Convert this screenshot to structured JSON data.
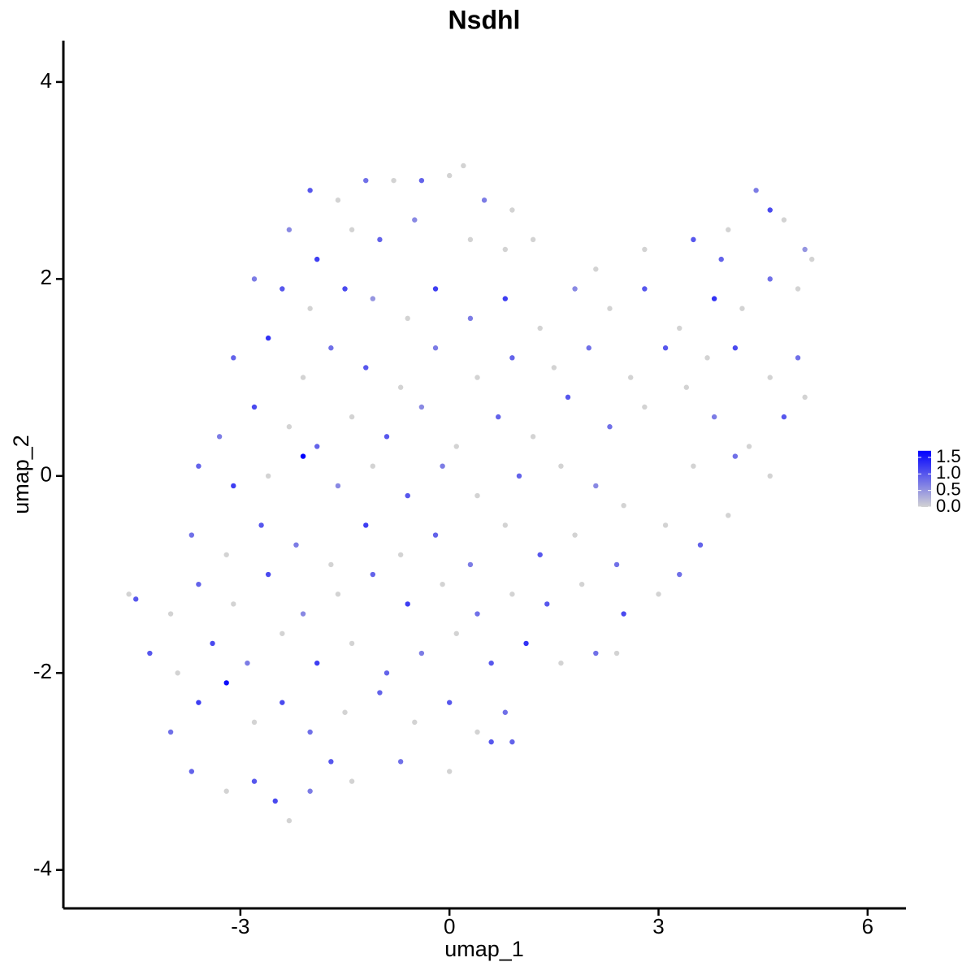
{
  "chart_data": {
    "type": "scatter",
    "title": "Nsdhl",
    "x_label": "umap_1",
    "y_label": "umap_2",
    "xlim": [
      -5.54,
      6.55
    ],
    "xticks": [
      -3,
      0,
      3,
      6
    ],
    "ylim": [
      -4.39,
      4.42
    ],
    "yticks": [
      -4,
      -2,
      0,
      2,
      4
    ],
    "low_color": "#d3d3d3",
    "high_color": "#0000ff",
    "colorbar": {
      "lim": [
        0,
        1.7
      ],
      "ticks": [
        {
          "value": 0,
          "label": "0.0"
        },
        {
          "value": 0.5,
          "label": "0.5"
        },
        {
          "value": 1,
          "label": "1.0"
        },
        {
          "value": 1.5,
          "label": "1.5"
        }
      ]
    },
    "x": [
      -2.3,
      -2.0,
      -1.6,
      -1.2,
      -0.8,
      -0.4,
      0,
      0.2,
      0.5,
      0.9,
      -1.9,
      -1.4,
      -1.0,
      -0.5,
      0.3,
      0.8,
      1.2,
      -2.8,
      -2.4,
      -2.0,
      -1.5,
      -1.1,
      -0.6,
      -0.2,
      0.3,
      0.8,
      1.3,
      1.8,
      2.3,
      2.8,
      3.3,
      3.8,
      4.2,
      4.6,
      5.0,
      5.2,
      3.5,
      4.0,
      4.4,
      4.8,
      5.1,
      2.8,
      3.9,
      4.6,
      2.1,
      -3.1,
      -2.6,
      -2.1,
      -1.7,
      -1.2,
      -0.7,
      -0.2,
      0.4,
      0.9,
      1.5,
      2.0,
      2.6,
      3.1,
      3.7,
      4.1,
      4.6,
      5.0,
      1.7,
      -3.3,
      -2.8,
      -2.3,
      -1.9,
      -1.4,
      -0.9,
      -0.4,
      0.1,
      0.7,
      1.2,
      2.3,
      2.8,
      3.8,
      4.3,
      4.8,
      5.1,
      3.4,
      -3.6,
      -3.1,
      -2.6,
      -2.1,
      -1.6,
      -1.1,
      -0.6,
      -0.1,
      0.4,
      1.0,
      1.6,
      2.1,
      3.5,
      4.1,
      4.6,
      2.5,
      -3.7,
      -3.2,
      -2.7,
      -2.2,
      -1.7,
      -1.2,
      -0.7,
      -0.2,
      0.3,
      0.8,
      1.3,
      1.8,
      2.4,
      3.1,
      3.6,
      4.0,
      -4.6,
      -4.5,
      -4.0,
      -3.6,
      -3.1,
      -2.6,
      -2.1,
      -1.6,
      -1.1,
      -0.6,
      -0.1,
      0.4,
      0.9,
      1.4,
      1.9,
      2.5,
      3.0,
      3.3,
      -4.3,
      -3.9,
      -3.4,
      -2.9,
      -2.4,
      -1.9,
      -1.4,
      -0.9,
      -0.4,
      0.1,
      0.6,
      1.1,
      1.6,
      2.1,
      2.4,
      -4.0,
      -3.6,
      -3.2,
      -2.8,
      -2.4,
      -2.0,
      -1.5,
      -1.0,
      -0.5,
      0.0,
      0.4,
      0.8,
      0.6,
      -3.7,
      -3.2,
      -2.8,
      -2.5,
      -2.3,
      -2.0,
      -1.4,
      -0.7,
      0.0,
      -1.7,
      0.9
    ],
    "y": [
      2.5,
      2.9,
      2.8,
      3.0,
      3.0,
      3.0,
      3.05,
      3.15,
      2.8,
      2.7,
      2.2,
      2.5,
      2.4,
      2.6,
      2.4,
      2.3,
      2.4,
      2.0,
      1.9,
      1.7,
      1.9,
      1.8,
      1.6,
      1.9,
      1.6,
      1.8,
      1.5,
      1.9,
      1.7,
      1.9,
      1.5,
      1.8,
      1.7,
      2.0,
      1.9,
      2.2,
      2.4,
      2.5,
      2.9,
      2.6,
      2.3,
      2.3,
      2.2,
      2.7,
      2.1,
      1.2,
      1.4,
      1.0,
      1.3,
      1.1,
      0.9,
      1.3,
      1.0,
      1.2,
      1.1,
      1.3,
      1.0,
      1.3,
      1.2,
      1.3,
      1.0,
      1.2,
      0.8,
      0.4,
      0.7,
      0.5,
      0.3,
      0.6,
      0.4,
      0.7,
      0.3,
      0.6,
      0.4,
      0.5,
      0.7,
      0.6,
      0.3,
      0.6,
      0.8,
      0.9,
      0.1,
      -0.1,
      0.0,
      0.2,
      -0.1,
      0.1,
      -0.2,
      0.1,
      -0.2,
      0.0,
      0.1,
      -0.1,
      0.1,
      0.2,
      0.0,
      -0.3,
      -0.6,
      -0.8,
      -0.5,
      -0.7,
      -0.9,
      -0.5,
      -0.8,
      -0.6,
      -0.9,
      -0.5,
      -0.8,
      -0.6,
      -0.9,
      -0.5,
      -0.7,
      -0.4,
      -1.2,
      -1.25,
      -1.4,
      -1.1,
      -1.3,
      -1.0,
      -1.4,
      -1.2,
      -1.0,
      -1.3,
      -1.1,
      -1.4,
      -1.2,
      -1.3,
      -1.1,
      -1.4,
      -1.2,
      -1.0,
      -1.8,
      -2.0,
      -1.7,
      -1.9,
      -1.6,
      -1.9,
      -1.7,
      -2.0,
      -1.8,
      -1.6,
      -1.9,
      -1.7,
      -1.9,
      -1.8,
      -1.8,
      -2.6,
      -2.3,
      -2.1,
      -2.5,
      -2.3,
      -2.6,
      -2.4,
      -2.2,
      -2.5,
      -2.3,
      -2.6,
      -2.4,
      -2.7,
      -3.0,
      -3.2,
      -3.1,
      -3.3,
      -3.5,
      -3.2,
      -3.1,
      -2.9,
      -3.0,
      -2.9,
      -2.7
    ],
    "values": [
      0.6,
      1.0,
      0,
      0.8,
      0,
      0.9,
      0,
      0,
      0.7,
      0,
      1.2,
      0,
      0.9,
      0.6,
      0,
      0,
      0,
      0.7,
      1.0,
      0,
      1.1,
      0.5,
      0,
      1.2,
      0.7,
      1.2,
      0,
      0.6,
      0,
      1.0,
      0,
      1.3,
      0,
      0.8,
      0,
      0,
      1.0,
      0,
      0.7,
      0,
      0.5,
      0,
      0.9,
      1.1,
      0,
      0.9,
      1.3,
      0,
      0.8,
      1.0,
      0,
      0.7,
      0,
      0.9,
      0,
      0.8,
      0,
      1.0,
      0,
      1.1,
      0,
      0.8,
      1.0,
      0.7,
      1.1,
      0,
      0.9,
      0,
      1.0,
      0.6,
      0,
      0.9,
      0,
      0.8,
      0,
      0.7,
      0,
      1.0,
      0,
      0,
      0.9,
      1.2,
      0,
      1.7,
      0.6,
      0,
      1.0,
      0.7,
      0,
      0.9,
      0,
      0.6,
      0,
      0.8,
      0,
      0,
      0.8,
      0,
      1.0,
      0.7,
      0,
      1.2,
      0,
      0.9,
      0.7,
      0,
      1.0,
      0,
      0.8,
      0,
      0.9,
      0,
      0,
      1.0,
      0,
      0.9,
      0,
      1.1,
      0.6,
      0,
      0.9,
      1.2,
      0,
      0.8,
      0,
      1.0,
      0,
      1.1,
      0,
      0.8,
      1.0,
      0,
      1.1,
      0.7,
      0,
      1.2,
      0,
      0.9,
      0.7,
      0,
      1.0,
      1.3,
      0,
      0.8,
      0,
      0.8,
      1.2,
      1.6,
      0,
      1.1,
      0.8,
      0,
      0.9,
      0,
      1.0,
      0,
      0.8,
      1.0,
      0.9,
      0,
      1.0,
      1.1,
      0,
      0.7,
      0,
      0.8,
      0,
      1.0,
      0.9
    ]
  }
}
